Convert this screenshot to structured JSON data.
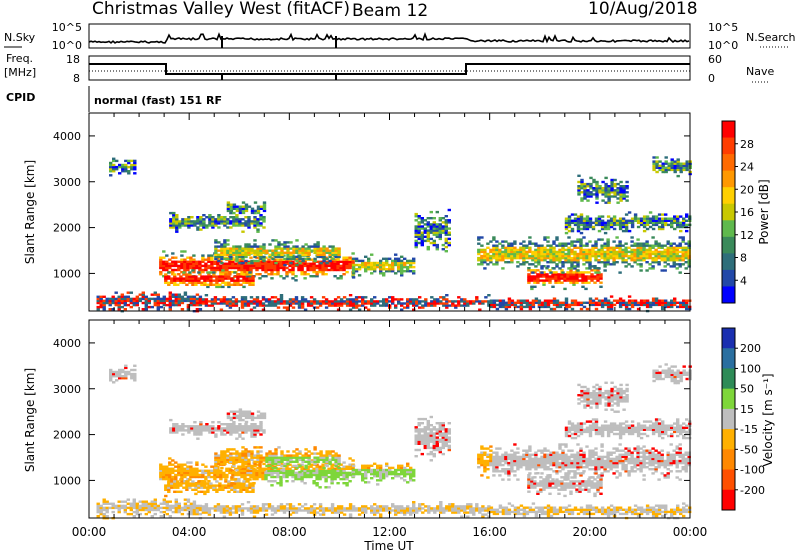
{
  "header": {
    "station": "Christmas Valley West (fitACF)",
    "beam": "Beam 12",
    "date": "10/Aug/2018"
  },
  "panels": {
    "nsky": {
      "label": "N.Sky",
      "ticks": [
        "10^5",
        "10^0"
      ],
      "right_label": "N.Search",
      "right_ticks": [
        "10^5",
        "10^0"
      ]
    },
    "freq": {
      "label_line1": "Freq.",
      "label_line2": "[MHz]",
      "ticks": [
        "18",
        "8"
      ],
      "right_label": "Nave",
      "right_ticks": [
        "60",
        "0"
      ]
    },
    "cpid": {
      "label": "CPID",
      "value": "normal (fast) 151 RF"
    }
  },
  "chart_data": [
    {
      "type": "heatmap",
      "name": "power",
      "ylabel": "Slant Range [km]",
      "xlabel": "Time UT",
      "xlim_hours": [
        0,
        24
      ],
      "ylim": [
        180,
        4500
      ],
      "yticks": [
        "4000",
        "3000",
        "2000",
        "1000"
      ],
      "xticks": [
        "00:00",
        "04:00",
        "08:00",
        "12:00",
        "16:00",
        "20:00",
        "00:00"
      ],
      "colorbar": {
        "label": "Power [dB]",
        "ticks": [
          "28",
          "24",
          "20",
          "16",
          "12",
          "8",
          "4"
        ],
        "colors": [
          "#ff0000",
          "#ff3d00",
          "#ff6a00",
          "#ff9800",
          "#ffd000",
          "#c8c800",
          "#5fb94d",
          "#3a8a5a",
          "#2e6e7a",
          "#2248a8",
          "#0000ff"
        ]
      }
    },
    {
      "type": "heatmap",
      "name": "velocity",
      "ylabel": "Slant Range [km]",
      "xlabel": "Time UT",
      "xlim_hours": [
        0,
        24
      ],
      "ylim": [
        180,
        4500
      ],
      "yticks": [
        "4000",
        "3000",
        "2000",
        "1000"
      ],
      "xticks": [
        "00:00",
        "04:00",
        "08:00",
        "12:00",
        "16:00",
        "20:00",
        "00:00"
      ],
      "colorbar": {
        "label": "Velocity [m s⁻¹]",
        "ticks": [
          "200",
          "100",
          "50",
          "15",
          "-15",
          "-50",
          "-100",
          "-200"
        ],
        "colors": [
          "#1a2fb0",
          "#2a6fa0",
          "#2e8b57",
          "#7ed63a",
          "#bebebe",
          "#ffb000",
          "#ff8800",
          "#ff5000",
          "#ff0000"
        ]
      }
    }
  ]
}
